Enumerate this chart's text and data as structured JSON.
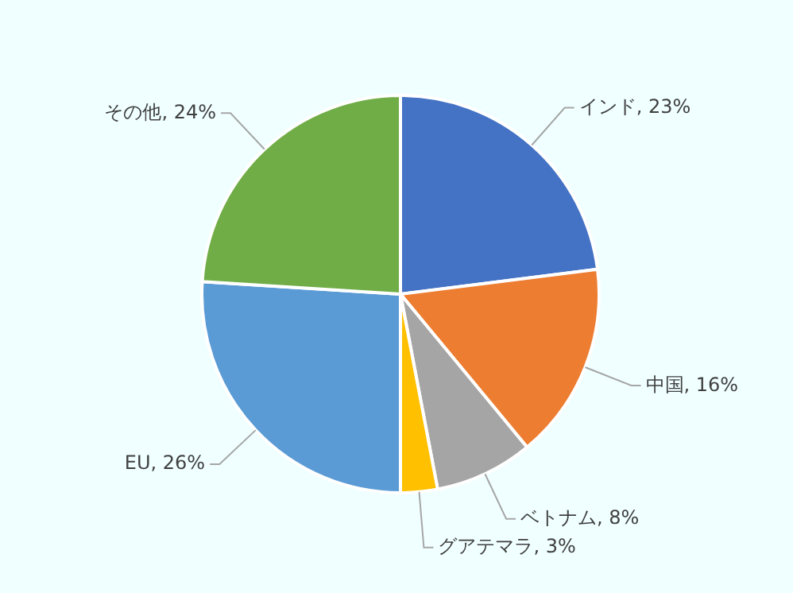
{
  "chart_data": {
    "type": "pie",
    "categories": [
      "インド",
      "中国",
      "ベトナム",
      "グアテマラ",
      "EU",
      "その他"
    ],
    "values": [
      23,
      16,
      8,
      3,
      26,
      24
    ],
    "value_labels": [
      ", 23%",
      ", 16%",
      ", 8%",
      ", 3%",
      ", 26%",
      ", 24%"
    ],
    "colors": [
      "#4472c4",
      "#ed7d31",
      "#a5a5a5",
      "#ffc000",
      "#5b9bd5",
      "#70ad47"
    ]
  }
}
